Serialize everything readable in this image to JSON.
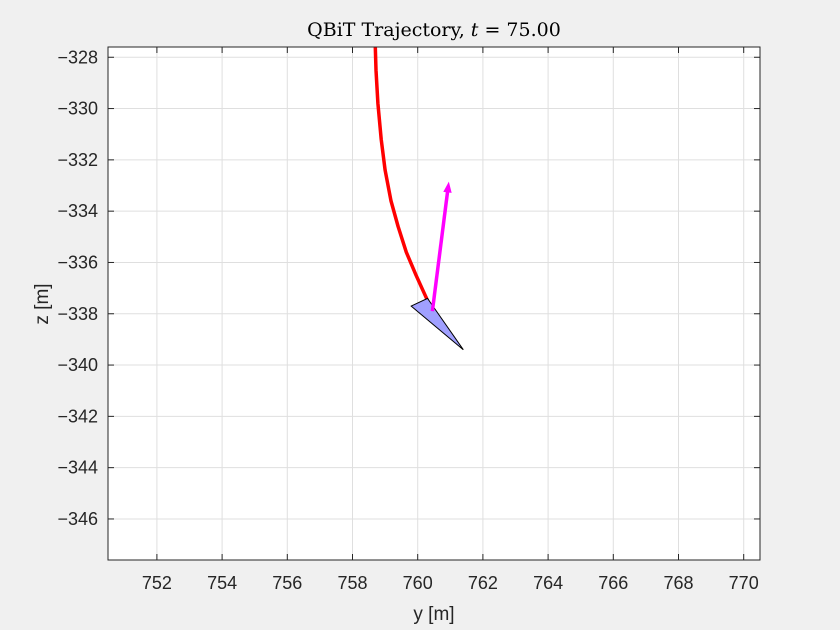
{
  "chart_data": {
    "type": "line",
    "title_text": "QBiT Trajectory, ",
    "title_var": "t",
    "title_eq": " = 75.00",
    "xlabel": "y [m]",
    "ylabel": "z [m]",
    "xlim": [
      750.5,
      770.5
    ],
    "ylim": [
      -347.6,
      -327.6
    ],
    "xticks": [
      752,
      754,
      756,
      758,
      760,
      762,
      764,
      766,
      768,
      770
    ],
    "yticks": [
      -328,
      -330,
      -332,
      -334,
      -336,
      -338,
      -340,
      -342,
      -344,
      -346
    ],
    "grid": true,
    "series": [
      {
        "color": "#ff0000",
        "x": [
          758.7,
          758.72,
          758.78,
          758.88,
          759.0,
          759.18,
          759.4,
          759.65,
          759.95,
          760.2,
          760.45
        ],
        "y": [
          -327.6,
          -328.5,
          -329.8,
          -331.2,
          -332.4,
          -333.6,
          -334.6,
          -335.6,
          -336.5,
          -337.2,
          -337.9
        ]
      }
    ],
    "arrow": {
      "color": "#ff00ff",
      "x": [
        760.45,
        760.95
      ],
      "y": [
        -337.9,
        -332.9
      ]
    },
    "marker": {
      "fill": "#a0a0ff",
      "stroke": "#000000",
      "x": [
        759.8,
        760.3,
        761.4
      ],
      "y": [
        -337.7,
        -337.4,
        -339.4
      ]
    },
    "colors": {
      "background": "#f0f0f0",
      "axes_background": "#ffffff",
      "grid": "#dfdfdf",
      "axis_line": "#262626"
    }
  }
}
